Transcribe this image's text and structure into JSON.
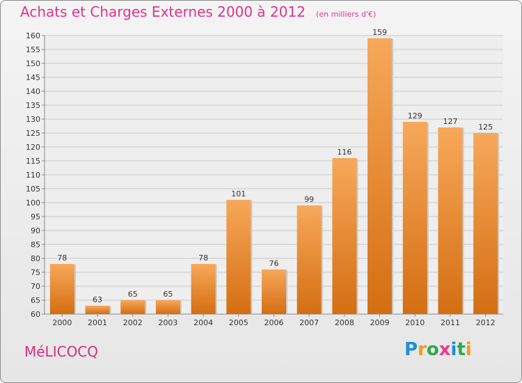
{
  "header": {
    "title": "Achats et Charges Externes 2000 à 2012",
    "unit": "(en milliers d'€)"
  },
  "commune": "MéLICOCQ",
  "logo": {
    "text": "Proxiti",
    "letters": [
      {
        "ch": "P",
        "color": "#1e8fd6"
      },
      {
        "ch": "r",
        "color": "#f29a1c"
      },
      {
        "ch": "o",
        "color": "#2da94f"
      },
      {
        "ch": "x",
        "color": "#e53d8c"
      },
      {
        "ch": "i",
        "color": "#1e8fd6"
      },
      {
        "ch": "t",
        "color": "#2da94f"
      },
      {
        "ch": "i",
        "color": "#f29a1c"
      }
    ]
  },
  "colors": {
    "bar_top": "#f7a85a",
    "bar_bottom": "#d46e12",
    "title": "#e0338b",
    "grid": "#c8c8c8"
  },
  "chart_data": {
    "type": "bar",
    "title": "Achats et Charges Externes 2000 à 2012",
    "subtitle": "(en milliers d'€)",
    "categories": [
      "2000",
      "2001",
      "2002",
      "2003",
      "2004",
      "2005",
      "2006",
      "2007",
      "2008",
      "2009",
      "2010",
      "2011",
      "2012"
    ],
    "values": [
      78,
      63,
      65,
      65,
      78,
      101,
      76,
      99,
      116,
      159,
      129,
      127,
      125
    ],
    "ylim": [
      60,
      160
    ],
    "ytick_step": 5,
    "grid": true,
    "show_value_labels": true
  }
}
